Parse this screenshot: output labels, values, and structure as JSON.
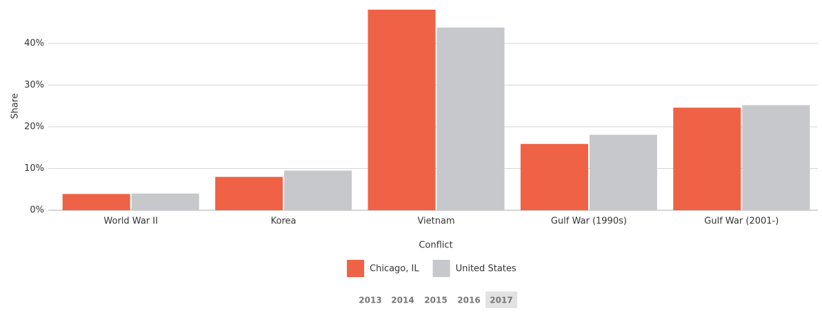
{
  "chart_data": {
    "type": "bar",
    "x_label": "Conflict",
    "y_label": "Share",
    "categories": [
      "World War II",
      "Korea",
      "Vietnam",
      "Gulf War (1990s)",
      "Gulf War (2001-)"
    ],
    "series": [
      {
        "name": "Chicago, IL",
        "color": "#ef6245",
        "values": [
          3.9,
          8.0,
          48.1,
          15.9,
          24.6
        ]
      },
      {
        "name": "United States",
        "color": "#c7c8cc",
        "values": [
          4.0,
          9.5,
          43.8,
          18.1,
          25.2
        ]
      }
    ],
    "ylim": [
      0,
      50
    ],
    "yticks": [
      {
        "value": 0,
        "label": "0%"
      },
      {
        "value": 10,
        "label": "10%"
      },
      {
        "value": 20,
        "label": "20%"
      },
      {
        "value": 30,
        "label": "30%"
      },
      {
        "value": 40,
        "label": "40%"
      }
    ],
    "grid": true,
    "legend": "bottom"
  },
  "year_selector": {
    "options": [
      "2013",
      "2014",
      "2015",
      "2016",
      "2017"
    ],
    "selected_index": 4
  }
}
